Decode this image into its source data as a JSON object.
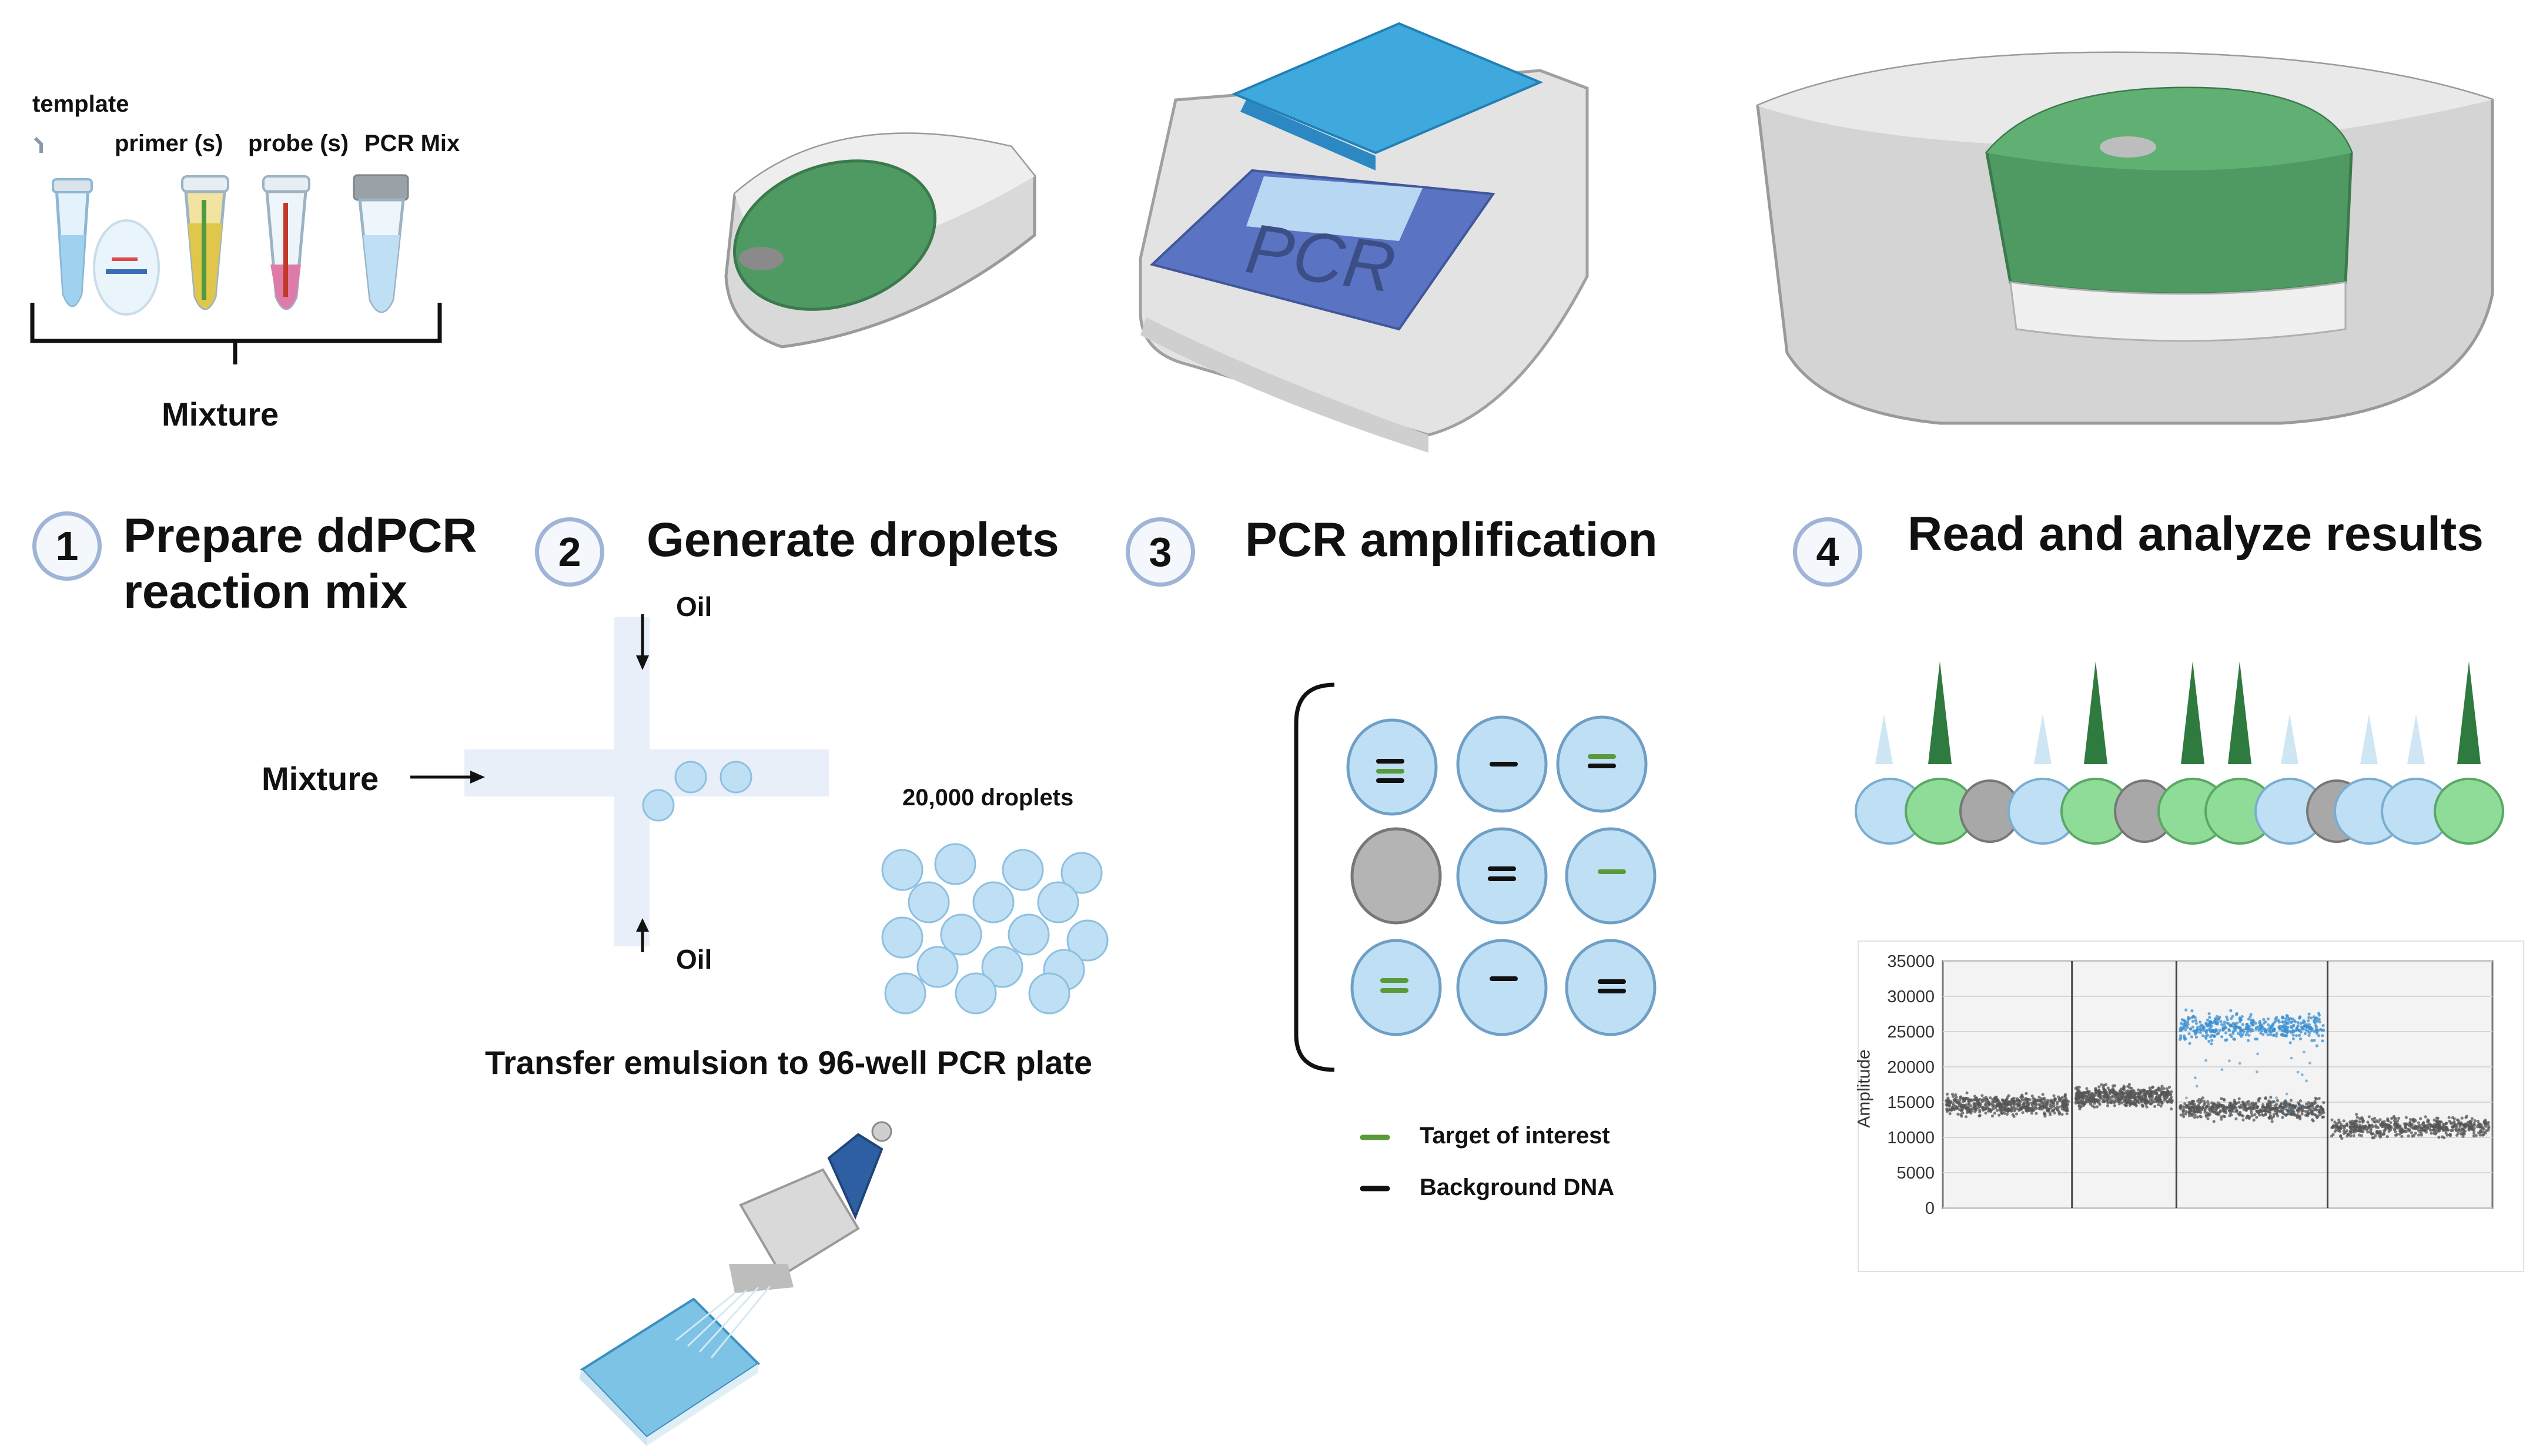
{
  "steps": [
    {
      "number": "1",
      "title_line1": "Prepare ddPCR",
      "title_line2": "reaction mix"
    },
    {
      "number": "2",
      "title": "Generate droplets"
    },
    {
      "number": "3",
      "title": "PCR amplification"
    },
    {
      "number": "4",
      "title": "Read and analyze results"
    }
  ],
  "mix": {
    "template": "template",
    "primer": "primer (s)",
    "probe": "probe (s)",
    "pcr_mix": "PCR Mix",
    "mixture": "Mixture"
  },
  "droplet_gen": {
    "oil_top": "Oil",
    "oil_bottom": "Oil",
    "mixture": "Mixture",
    "droplets": "20,000 droplets",
    "transfer": "Transfer emulsion to 96-well PCR plate"
  },
  "thermocycler": {
    "label": "PCR"
  },
  "legend": {
    "target": "Target of interest",
    "background": "Background DNA",
    "target_color": "#5a9a3a",
    "background_color": "#111111"
  },
  "colors": {
    "instrument_green": "#4f9a62",
    "droplet_blue": "#bfe0f4",
    "positive_green": "#7ed08a",
    "negative_gray": "#9a9a9a",
    "accent_circle": "#9fb4d6"
  },
  "chart_data": {
    "type": "scatter",
    "title": "",
    "xlabel": "",
    "ylabel": "Amplitude",
    "ylim": [
      0,
      35000
    ],
    "yticks": [
      "35000",
      "30000",
      "25000",
      "20000",
      "15000",
      "10000",
      "5000",
      "0"
    ],
    "grid": true,
    "wells": 4,
    "series": [
      {
        "name": "",
        "color": "#555555",
        "bands": [
          {
            "well": 1,
            "y": 14500
          },
          {
            "well": 2,
            "y": 15800
          },
          {
            "well": 3,
            "y": 14000
          },
          {
            "well": 4,
            "y": 11500
          }
        ]
      },
      {
        "name": "",
        "color": "#3a8fd1",
        "bands": [
          {
            "well": 3,
            "y": 25500
          }
        ]
      }
    ]
  }
}
